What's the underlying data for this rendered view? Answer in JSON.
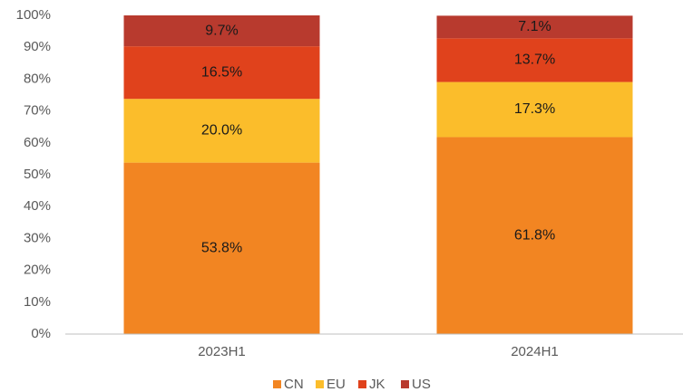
{
  "chart_data": {
    "type": "stacked_bar",
    "categories": [
      "2023H1",
      "2024H1"
    ],
    "series": [
      {
        "name": "CN",
        "color": "#f28522",
        "values": [
          53.8,
          61.8
        ],
        "value_labels": [
          "53.8%",
          "61.8%"
        ]
      },
      {
        "name": "EU",
        "color": "#fbbd2b",
        "values": [
          20.0,
          17.3
        ],
        "value_labels": [
          "20.0%",
          "17.3%"
        ]
      },
      {
        "name": "JK",
        "color": "#e0421c",
        "values": [
          16.5,
          13.7
        ],
        "value_labels": [
          "16.5%",
          "13.7%"
        ]
      },
      {
        "name": "US",
        "color": "#b83a2e",
        "values": [
          9.7,
          7.1
        ],
        "value_labels": [
          "9.7%",
          "7.1%"
        ]
      }
    ],
    "ylim": [
      0,
      100
    ],
    "yticks": [
      {
        "value": 0,
        "label": "0%"
      },
      {
        "value": 10,
        "label": "10%"
      },
      {
        "value": 20,
        "label": "20%"
      },
      {
        "value": 30,
        "label": "30%"
      },
      {
        "value": 40,
        "label": "40%"
      },
      {
        "value": 50,
        "label": "50%"
      },
      {
        "value": 60,
        "label": "60%"
      },
      {
        "value": 70,
        "label": "70%"
      },
      {
        "value": 80,
        "label": "80%"
      },
      {
        "value": 90,
        "label": "90%"
      },
      {
        "value": 100,
        "label": "100%"
      }
    ],
    "grid": false,
    "legend": "bottom"
  }
}
